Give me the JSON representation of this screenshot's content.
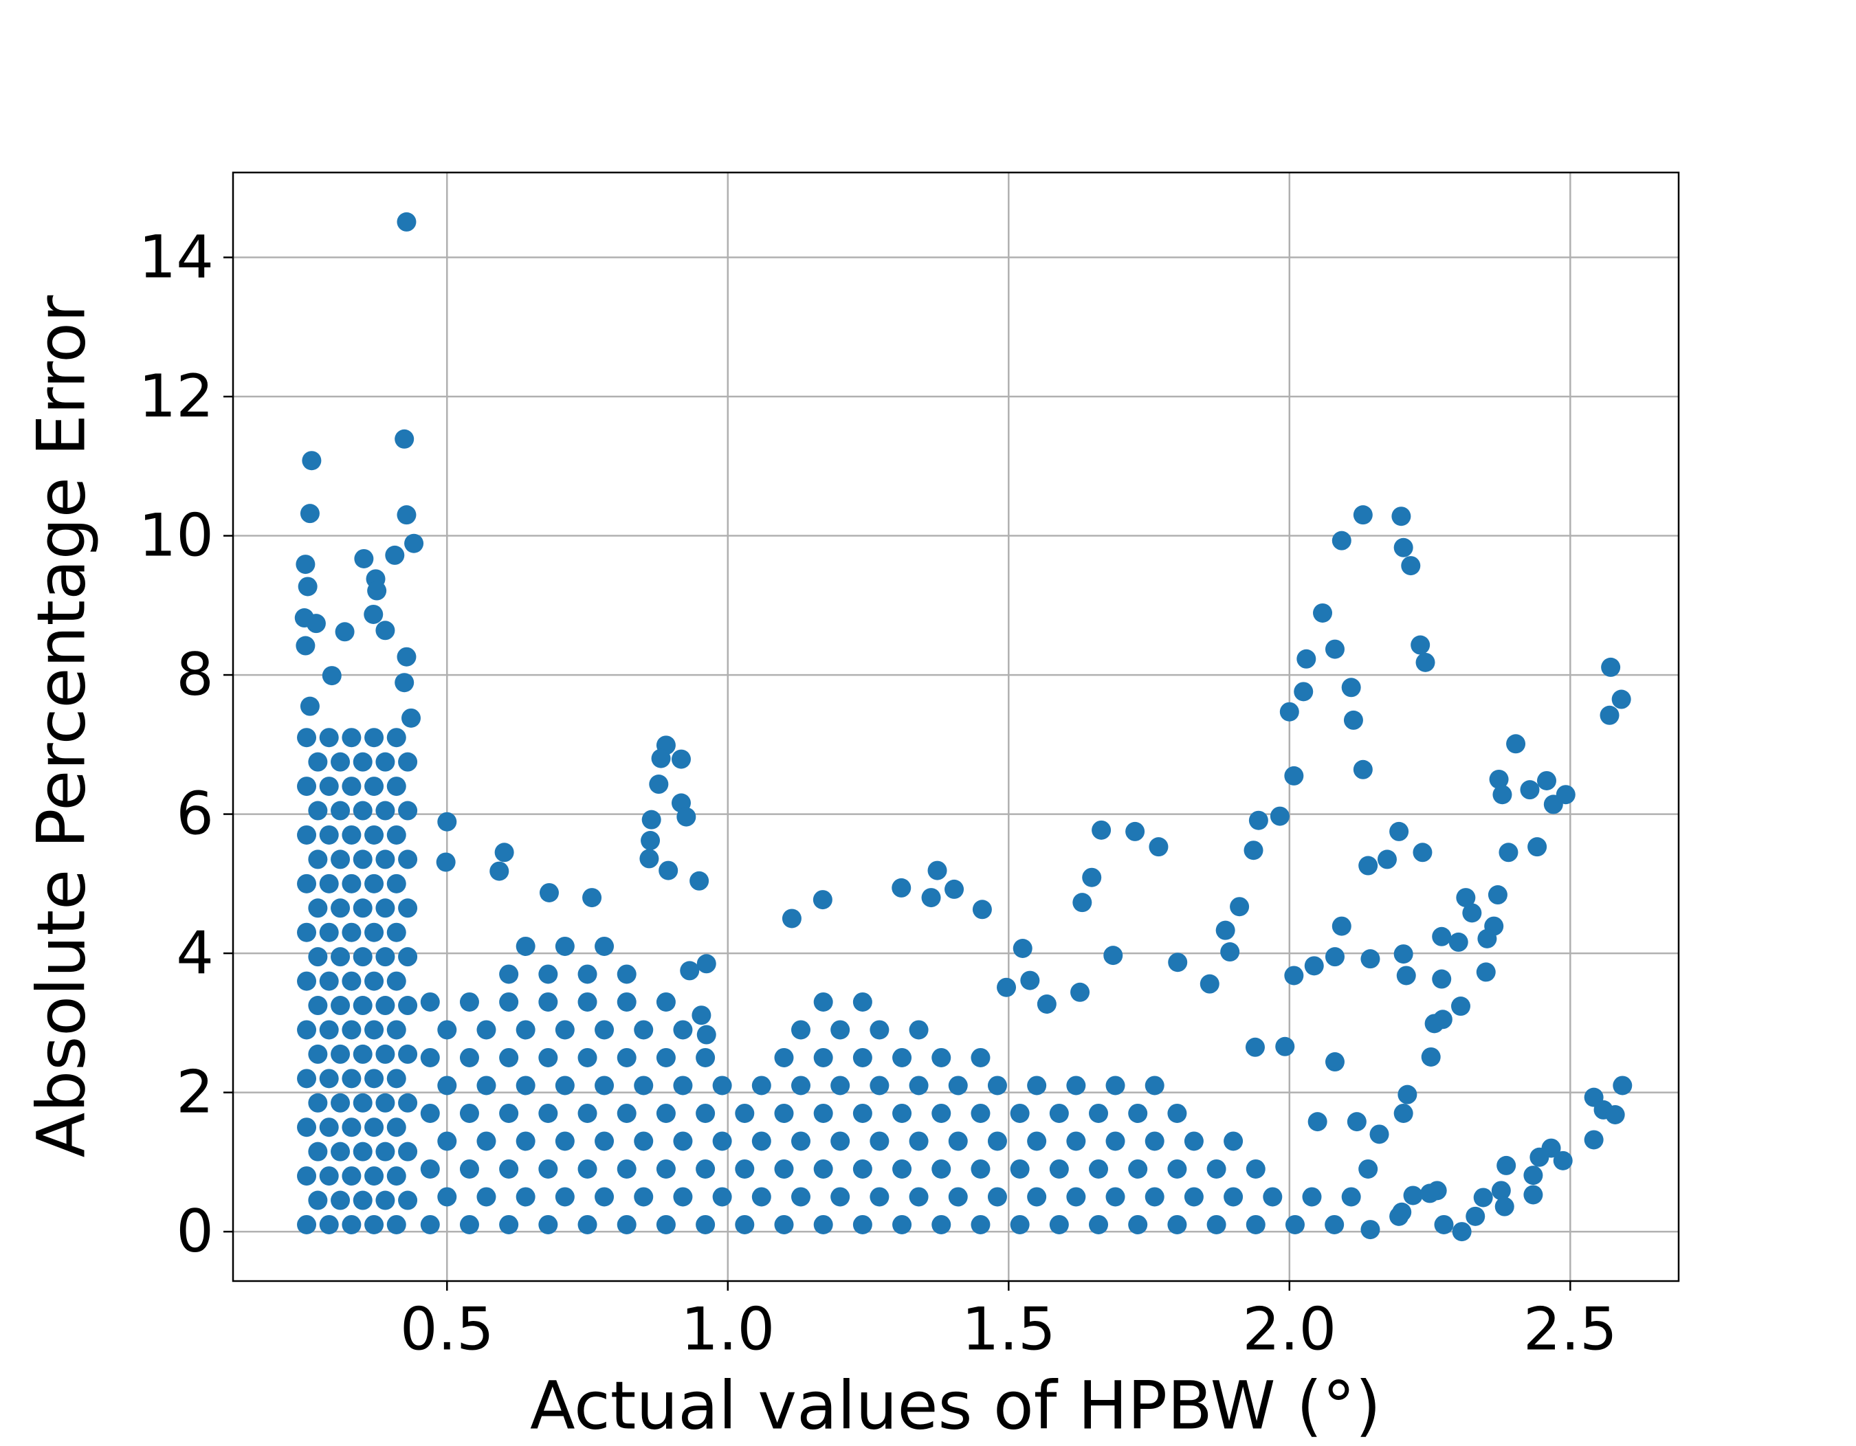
{
  "chart_data": {
    "type": "scatter",
    "x_label": "Actual values of HPBW (°)",
    "y_label": "Absolute Percentage Error",
    "color": "#1f77b4",
    "grid": true,
    "xlim": [
      0.119,
      2.693
    ],
    "ylim": [
      -0.71,
      15.22
    ],
    "xticks": [
      0.5,
      {
        "value": 1,
        "label": "1.0"
      },
      1.5,
      {
        "value": 2,
        "label": "2.0"
      },
      2.5
    ],
    "yticks": [
      0,
      2,
      4,
      6,
      8,
      10,
      12,
      14
    ],
    "x": [
      0.25,
      0.29,
      0.33,
      0.37,
      0.41,
      0.27,
      0.31,
      0.35,
      0.39,
      0.43,
      0.25,
      0.29,
      0.33,
      0.37,
      0.41,
      0.27,
      0.31,
      0.35,
      0.39,
      0.43,
      0.25,
      0.29,
      0.33,
      0.37,
      0.41,
      0.27,
      0.31,
      0.35,
      0.39,
      0.43,
      0.25,
      0.29,
      0.33,
      0.37,
      0.41,
      0.27,
      0.31,
      0.35,
      0.39,
      0.43,
      0.25,
      0.29,
      0.33,
      0.37,
      0.41,
      0.27,
      0.31,
      0.35,
      0.39,
      0.43,
      0.25,
      0.29,
      0.33,
      0.37,
      0.41,
      0.27,
      0.31,
      0.35,
      0.39,
      0.43,
      0.25,
      0.29,
      0.33,
      0.37,
      0.41,
      0.27,
      0.31,
      0.35,
      0.39,
      0.43,
      0.25,
      0.29,
      0.33,
      0.37,
      0.41,
      0.27,
      0.31,
      0.35,
      0.39,
      0.43,
      0.25,
      0.29,
      0.33,
      0.37,
      0.41,
      0.27,
      0.31,
      0.35,
      0.39,
      0.43,
      0.25,
      0.29,
      0.33,
      0.37,
      0.41,
      0.27,
      0.31,
      0.35,
      0.39,
      0.43,
      0.25,
      0.29,
      0.33,
      0.37,
      0.41,
      0.47,
      0.54,
      0.61,
      0.68,
      0.75,
      0.82,
      0.89,
      0.96,
      1.03,
      1.1,
      1.17,
      1.24,
      1.31,
      1.38,
      1.45,
      1.52,
      1.59,
      1.66,
      1.73,
      1.8,
      1.87,
      1.94,
      2.01,
      2.08,
      0.5,
      0.57,
      0.64,
      0.71,
      0.78,
      0.85,
      0.92,
      0.99,
      1.06,
      1.13,
      1.2,
      1.27,
      1.34,
      1.41,
      1.48,
      1.55,
      1.62,
      1.69,
      1.76,
      1.83,
      1.9,
      1.97,
      2.04,
      2.11,
      0.47,
      0.54,
      0.61,
      0.68,
      0.75,
      0.82,
      0.89,
      0.96,
      1.03,
      1.1,
      1.17,
      1.24,
      1.31,
      1.38,
      1.45,
      1.52,
      1.59,
      1.66,
      1.73,
      1.8,
      1.87,
      1.94,
      0.5,
      0.57,
      0.64,
      0.71,
      0.78,
      0.85,
      0.92,
      0.99,
      1.06,
      1.13,
      1.2,
      1.27,
      1.34,
      1.41,
      1.48,
      1.55,
      1.62,
      1.69,
      1.76,
      1.83,
      1.9,
      0.47,
      0.54,
      0.61,
      0.68,
      0.75,
      0.82,
      0.89,
      0.96,
      1.03,
      1.1,
      1.17,
      1.24,
      1.31,
      1.38,
      1.45,
      1.52,
      1.59,
      1.66,
      1.73,
      1.8,
      0.5,
      0.57,
      0.64,
      0.71,
      0.78,
      0.85,
      0.92,
      0.99,
      1.06,
      1.13,
      1.2,
      1.27,
      1.34,
      1.41,
      1.48,
      1.55,
      1.62,
      1.69,
      1.76,
      0.47,
      0.54,
      0.61,
      0.68,
      0.75,
      0.82,
      0.89,
      0.96,
      1.1,
      1.17,
      1.24,
      1.31,
      1.38,
      1.45,
      0.5,
      0.57,
      0.64,
      0.71,
      0.78,
      0.85,
      0.92,
      1.13,
      1.2,
      1.27,
      1.34,
      0.47,
      0.54,
      0.61,
      0.68,
      0.75,
      0.82,
      0.89,
      1.17,
      1.24,
      0.61,
      0.68,
      0.75,
      0.82,
      0.64,
      0.71,
      0.78,
      0.428,
      0.424,
      0.259,
      0.428,
      0.256,
      0.441,
      2.131,
      2.199,
      2.203,
      2.216,
      2.093,
      2.059,
      2.081,
      2.03,
      2.233,
      2.242,
      2.572,
      2.591,
      2.57,
      2.0,
      2.025,
      2.11,
      2.114,
      2.131,
      2.008,
      2.403,
      2.458,
      2.492,
      2.47,
      2.373,
      2.379,
      2.428,
      1.983,
      1.945,
      1.936,
      2.195,
      2.237,
      2.174,
      2.14,
      2.39,
      2.441,
      1.665,
      1.725,
      1.767,
      1.648,
      1.631,
      2.371,
      2.314,
      2.325,
      1.911,
      2.364,
      2.352,
      2.093,
      2.203,
      2.144,
      2.081,
      2.301,
      2.271,
      2.35,
      2.208,
      2.271,
      2.044,
      2.008,
      2.305,
      2.273,
      2.258,
      2.252,
      2.081,
      1.992,
      1.939,
      2.593,
      2.542,
      2.559,
      2.58,
      2.542,
      2.203,
      2.21,
      2.386,
      2.466,
      2.445,
      2.487,
      2.434,
      2.377,
      2.434,
      2.383,
      2.345,
      2.331,
      2.307,
      2.275,
      2.263,
      2.195,
      2.144,
      1.801,
      1.686,
      1.858,
      1.886,
      1.894,
      0.89,
      0.881,
      0.917,
      0.877,
      0.917,
      0.926,
      0.864,
      0.862,
      0.86,
      0.894,
      0.949,
      0.5,
      0.498,
      0.602,
      0.593,
      1.373,
      1.403,
      1.309,
      1.453,
      1.362,
      1.114,
      1.169,
      0.682,
      0.758,
      1.525,
      1.496,
      1.538,
      1.568,
      1.627,
      0.962,
      0.932,
      0.953,
      0.962,
      0.352,
      0.373,
      0.248,
      0.252,
      0.407,
      0.375,
      0.369,
      0.246,
      0.267,
      0.318,
      0.39,
      0.428,
      0.248,
      0.295,
      0.424,
      0.436,
      0.256,
      2.05,
      2.12,
      2.16,
      2.14,
      2.2,
      2.22,
      2.25
    ],
    "values": [
      0.1,
      0.1,
      0.1,
      0.1,
      0.1,
      0.45,
      0.45,
      0.45,
      0.45,
      0.45,
      0.8,
      0.8,
      0.8,
      0.8,
      0.8,
      1.15,
      1.15,
      1.15,
      1.15,
      1.15,
      1.5,
      1.5,
      1.5,
      1.5,
      1.5,
      1.85,
      1.85,
      1.85,
      1.85,
      1.85,
      2.2,
      2.2,
      2.2,
      2.2,
      2.2,
      2.55,
      2.55,
      2.55,
      2.55,
      2.55,
      2.9,
      2.9,
      2.9,
      2.9,
      2.9,
      3.25,
      3.25,
      3.25,
      3.25,
      3.25,
      3.6,
      3.6,
      3.6,
      3.6,
      3.6,
      3.95,
      3.95,
      3.95,
      3.95,
      3.95,
      4.3,
      4.3,
      4.3,
      4.3,
      4.3,
      4.65,
      4.65,
      4.65,
      4.65,
      4.65,
      5,
      5,
      5,
      5,
      5,
      5.35,
      5.35,
      5.35,
      5.35,
      5.35,
      5.7,
      5.7,
      5.7,
      5.7,
      5.7,
      6.05,
      6.05,
      6.05,
      6.05,
      6.05,
      6.4,
      6.4,
      6.4,
      6.4,
      6.4,
      6.75,
      6.75,
      6.75,
      6.75,
      6.75,
      7.1,
      7.1,
      7.1,
      7.1,
      7.1,
      0.1,
      0.1,
      0.1,
      0.1,
      0.1,
      0.1,
      0.1,
      0.1,
      0.1,
      0.1,
      0.1,
      0.1,
      0.1,
      0.1,
      0.1,
      0.1,
      0.1,
      0.1,
      0.1,
      0.1,
      0.1,
      0.1,
      0.1,
      0.1,
      0.5,
      0.5,
      0.5,
      0.5,
      0.5,
      0.5,
      0.5,
      0.5,
      0.5,
      0.5,
      0.5,
      0.5,
      0.5,
      0.5,
      0.5,
      0.5,
      0.5,
      0.5,
      0.5,
      0.5,
      0.5,
      0.5,
      0.5,
      0.5,
      0.9,
      0.9,
      0.9,
      0.9,
      0.9,
      0.9,
      0.9,
      0.9,
      0.9,
      0.9,
      0.9,
      0.9,
      0.9,
      0.9,
      0.9,
      0.9,
      0.9,
      0.9,
      0.9,
      0.9,
      0.9,
      0.9,
      1.3,
      1.3,
      1.3,
      1.3,
      1.3,
      1.3,
      1.3,
      1.3,
      1.3,
      1.3,
      1.3,
      1.3,
      1.3,
      1.3,
      1.3,
      1.3,
      1.3,
      1.3,
      1.3,
      1.3,
      1.3,
      1.7,
      1.7,
      1.7,
      1.7,
      1.7,
      1.7,
      1.7,
      1.7,
      1.7,
      1.7,
      1.7,
      1.7,
      1.7,
      1.7,
      1.7,
      1.7,
      1.7,
      1.7,
      1.7,
      1.7,
      2.1,
      2.1,
      2.1,
      2.1,
      2.1,
      2.1,
      2.1,
      2.1,
      2.1,
      2.1,
      2.1,
      2.1,
      2.1,
      2.1,
      2.1,
      2.1,
      2.1,
      2.1,
      2.1,
      2.5,
      2.5,
      2.5,
      2.5,
      2.5,
      2.5,
      2.5,
      2.5,
      2.5,
      2.5,
      2.5,
      2.5,
      2.5,
      2.5,
      2.9,
      2.9,
      2.9,
      2.9,
      2.9,
      2.9,
      2.9,
      2.9,
      2.9,
      2.9,
      2.9,
      3.3,
      3.3,
      3.3,
      3.3,
      3.3,
      3.3,
      3.3,
      3.3,
      3.3,
      3.7,
      3.7,
      3.7,
      3.7,
      4.1,
      4.1,
      4.1,
      14.51,
      11.39,
      11.08,
      10.3,
      10.32,
      9.89,
      10.3,
      10.28,
      9.83,
      9.57,
      9.93,
      8.89,
      8.37,
      8.23,
      8.43,
      8.18,
      8.11,
      7.65,
      7.42,
      7.47,
      7.76,
      7.82,
      7.35,
      6.64,
      6.55,
      7.01,
      6.48,
      6.28,
      6.14,
      6.5,
      6.28,
      6.35,
      5.97,
      5.91,
      5.48,
      5.75,
      5.45,
      5.35,
      5.26,
      5.45,
      5.53,
      5.77,
      5.75,
      5.53,
      5.09,
      4.73,
      4.84,
      4.8,
      4.58,
      4.67,
      4.39,
      4.21,
      4.39,
      3.99,
      3.92,
      3.95,
      4.16,
      4.24,
      3.73,
      3.68,
      3.63,
      3.82,
      3.68,
      3.24,
      3.05,
      2.99,
      2.51,
      2.44,
      2.66,
      2.65,
      2.1,
      1.93,
      1.75,
      1.68,
      1.32,
      1.7,
      1.97,
      0.95,
      1.2,
      1.07,
      1.02,
      0.81,
      0.59,
      0.53,
      0.36,
      0.49,
      0.22,
      0,
      0.1,
      0.59,
      0.22,
      0.03,
      3.87,
      3.97,
      3.56,
      4.33,
      4.02,
      6.99,
      6.8,
      6.79,
      6.43,
      6.16,
      5.96,
      5.92,
      5.62,
      5.36,
      5.19,
      5.04,
      5.89,
      5.31,
      5.45,
      5.18,
      5.19,
      4.92,
      4.94,
      4.63,
      4.8,
      4.5,
      4.77,
      4.87,
      4.8,
      4.07,
      3.51,
      3.61,
      3.27,
      3.44,
      3.85,
      3.75,
      3.11,
      2.83,
      9.67,
      9.38,
      9.59,
      9.27,
      9.72,
      9.21,
      8.87,
      8.82,
      8.74,
      8.62,
      8.64,
      8.26,
      8.42,
      7.99,
      7.89,
      7.38,
      7.55,
      1.58,
      1.58,
      1.4,
      0.9,
      0.28,
      0.52,
      0.55
    ]
  }
}
